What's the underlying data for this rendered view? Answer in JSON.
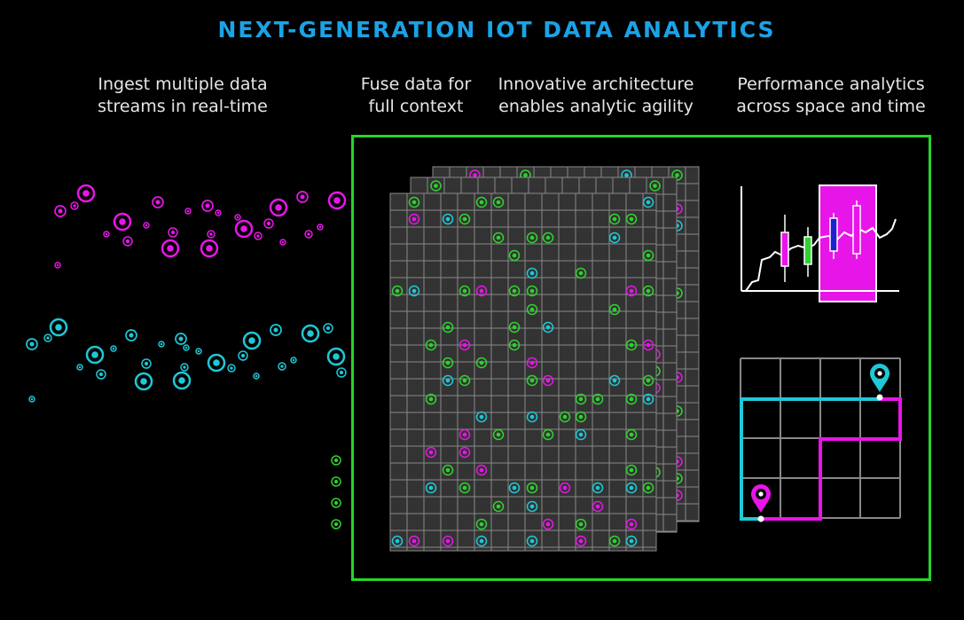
{
  "title": "NEXT-GENERATION IOT DATA ANALYTICS",
  "captions": {
    "ingest": [
      "Ingest multiple data",
      "streams in real-time"
    ],
    "fuse": [
      "Fuse data for",
      "full context"
    ],
    "architecture": [
      "Innovative architecture",
      "enables analytic agility"
    ],
    "performance": [
      "Performance analytics",
      "across space and time"
    ]
  },
  "colors": {
    "magenta": "#e815e8",
    "cyan": "#1ec8d6",
    "green": "#2fd22f",
    "blue_title": "#1aa3e6",
    "grid_line": "#888888",
    "grid_bg": "#333333"
  },
  "icons": [
    "map-pin-icon-cyan",
    "map-pin-icon-magenta"
  ]
}
